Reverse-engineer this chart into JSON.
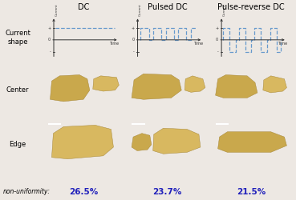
{
  "title_dc": "DC",
  "title_pulsed": "Pulsed DC",
  "title_prdc": "Pulse-reverse DC",
  "non_uniformity_label": "non-uniformity:",
  "non_uniformity_values": [
    "26.5%",
    "23.7%",
    "21.5%"
  ],
  "non_uniformity_color": "#2020bb",
  "bg_color": "#ede8e3",
  "panel_bg": "#050505",
  "label_fontsize": 6.0,
  "title_fontsize": 7.0,
  "nu_fontsize": 6.0,
  "waveform_axis_color": "#333333",
  "waveform_line_color": "#6699cc",
  "scale_bar_color": "#ffffff",
  "golden_color1": "#c9a84c",
  "golden_color2": "#d8b860",
  "golden_edge": "#a08030"
}
